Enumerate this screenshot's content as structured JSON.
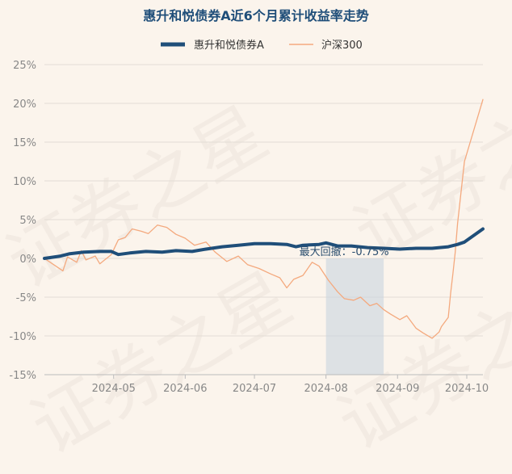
{
  "chart_data": {
    "type": "line",
    "title": "惠升和悦债券A近6个月累计收益率走势",
    "xlabel": "",
    "ylabel": "",
    "x_tick_labels": [
      "2024-05",
      "2024-06",
      "2024-07",
      "2024-08",
      "2024-09",
      "2024-10"
    ],
    "y_tick_labels": [
      "25%",
      "20%",
      "15%",
      "10%",
      "5%",
      "0%",
      "-5%",
      "-10%",
      "-15%"
    ],
    "ylim": [
      -15,
      25
    ],
    "x_range": [
      "2024-04-01",
      "2024-10-08"
    ],
    "grid": "horizontal",
    "legend_position": "top-center",
    "annotation": {
      "label": "最大回撤：-0.75%",
      "shaded_from": "2024-08-01",
      "shaded_to": "2024-08-26"
    },
    "series": [
      {
        "name": "惠升和悦债券A",
        "color": "#1f4e79",
        "points": [
          [
            "2024-04-01",
            0.0
          ],
          [
            "2024-04-08",
            0.3
          ],
          [
            "2024-04-12",
            0.6
          ],
          [
            "2024-04-18",
            0.8
          ],
          [
            "2024-04-25",
            0.9
          ],
          [
            "2024-04-30",
            0.9
          ],
          [
            "2024-05-03",
            0.5
          ],
          [
            "2024-05-08",
            0.7
          ],
          [
            "2024-05-15",
            0.9
          ],
          [
            "2024-05-22",
            0.8
          ],
          [
            "2024-05-28",
            1.0
          ],
          [
            "2024-06-04",
            0.9
          ],
          [
            "2024-06-10",
            1.2
          ],
          [
            "2024-06-17",
            1.5
          ],
          [
            "2024-06-24",
            1.7
          ],
          [
            "2024-07-01",
            1.9
          ],
          [
            "2024-07-08",
            1.9
          ],
          [
            "2024-07-15",
            1.8
          ],
          [
            "2024-07-19",
            1.5
          ],
          [
            "2024-07-22",
            1.7
          ],
          [
            "2024-07-29",
            1.8
          ],
          [
            "2024-08-01",
            2.0
          ],
          [
            "2024-08-06",
            1.6
          ],
          [
            "2024-08-12",
            1.6
          ],
          [
            "2024-08-19",
            1.4
          ],
          [
            "2024-08-26",
            1.3
          ],
          [
            "2024-09-02",
            1.2
          ],
          [
            "2024-09-09",
            1.3
          ],
          [
            "2024-09-16",
            1.3
          ],
          [
            "2024-09-23",
            1.5
          ],
          [
            "2024-09-27",
            1.8
          ],
          [
            "2024-09-30",
            2.1
          ],
          [
            "2024-10-08",
            3.8
          ]
        ]
      },
      {
        "name": "沪深300",
        "color": "#f4a97e",
        "points": [
          [
            "2024-04-01",
            0.0
          ],
          [
            "2024-04-05",
            -0.8
          ],
          [
            "2024-04-09",
            -1.6
          ],
          [
            "2024-04-11",
            0.2
          ],
          [
            "2024-04-15",
            -0.5
          ],
          [
            "2024-04-17",
            1.0
          ],
          [
            "2024-04-19",
            -0.2
          ],
          [
            "2024-04-23",
            0.3
          ],
          [
            "2024-04-25",
            -0.7
          ],
          [
            "2024-04-30",
            0.5
          ],
          [
            "2024-05-03",
            2.4
          ],
          [
            "2024-05-06",
            2.7
          ],
          [
            "2024-05-09",
            3.8
          ],
          [
            "2024-05-13",
            3.5
          ],
          [
            "2024-05-16",
            3.2
          ],
          [
            "2024-05-20",
            4.3
          ],
          [
            "2024-05-24",
            4.0
          ],
          [
            "2024-05-28",
            3.1
          ],
          [
            "2024-06-01",
            2.6
          ],
          [
            "2024-06-05",
            1.7
          ],
          [
            "2024-06-10",
            2.1
          ],
          [
            "2024-06-14",
            0.8
          ],
          [
            "2024-06-19",
            -0.4
          ],
          [
            "2024-06-24",
            0.3
          ],
          [
            "2024-06-28",
            -0.8
          ],
          [
            "2024-07-03",
            -1.3
          ],
          [
            "2024-07-08",
            -2.0
          ],
          [
            "2024-07-12",
            -2.5
          ],
          [
            "2024-07-15",
            -3.8
          ],
          [
            "2024-07-18",
            -2.7
          ],
          [
            "2024-07-22",
            -2.2
          ],
          [
            "2024-07-26",
            -0.5
          ],
          [
            "2024-07-29",
            -1.0
          ],
          [
            "2024-08-02",
            -2.8
          ],
          [
            "2024-08-06",
            -4.3
          ],
          [
            "2024-08-09",
            -5.2
          ],
          [
            "2024-08-13",
            -5.4
          ],
          [
            "2024-08-16",
            -5.0
          ],
          [
            "2024-08-20",
            -6.1
          ],
          [
            "2024-08-23",
            -5.8
          ],
          [
            "2024-08-26",
            -6.6
          ],
          [
            "2024-08-29",
            -7.2
          ],
          [
            "2024-09-02",
            -7.9
          ],
          [
            "2024-09-05",
            -7.4
          ],
          [
            "2024-09-09",
            -9.0
          ],
          [
            "2024-09-12",
            -9.6
          ],
          [
            "2024-09-16",
            -10.3
          ],
          [
            "2024-09-19",
            -9.5
          ],
          [
            "2024-09-20",
            -8.8
          ],
          [
            "2024-09-23",
            -7.6
          ],
          [
            "2024-09-24",
            -4.5
          ],
          [
            "2024-09-25",
            -2.0
          ],
          [
            "2024-09-26",
            0.8
          ],
          [
            "2024-09-27",
            4.5
          ],
          [
            "2024-09-30",
            12.5
          ],
          [
            "2024-10-08",
            20.5
          ]
        ]
      }
    ]
  },
  "watermark": "证券之星"
}
